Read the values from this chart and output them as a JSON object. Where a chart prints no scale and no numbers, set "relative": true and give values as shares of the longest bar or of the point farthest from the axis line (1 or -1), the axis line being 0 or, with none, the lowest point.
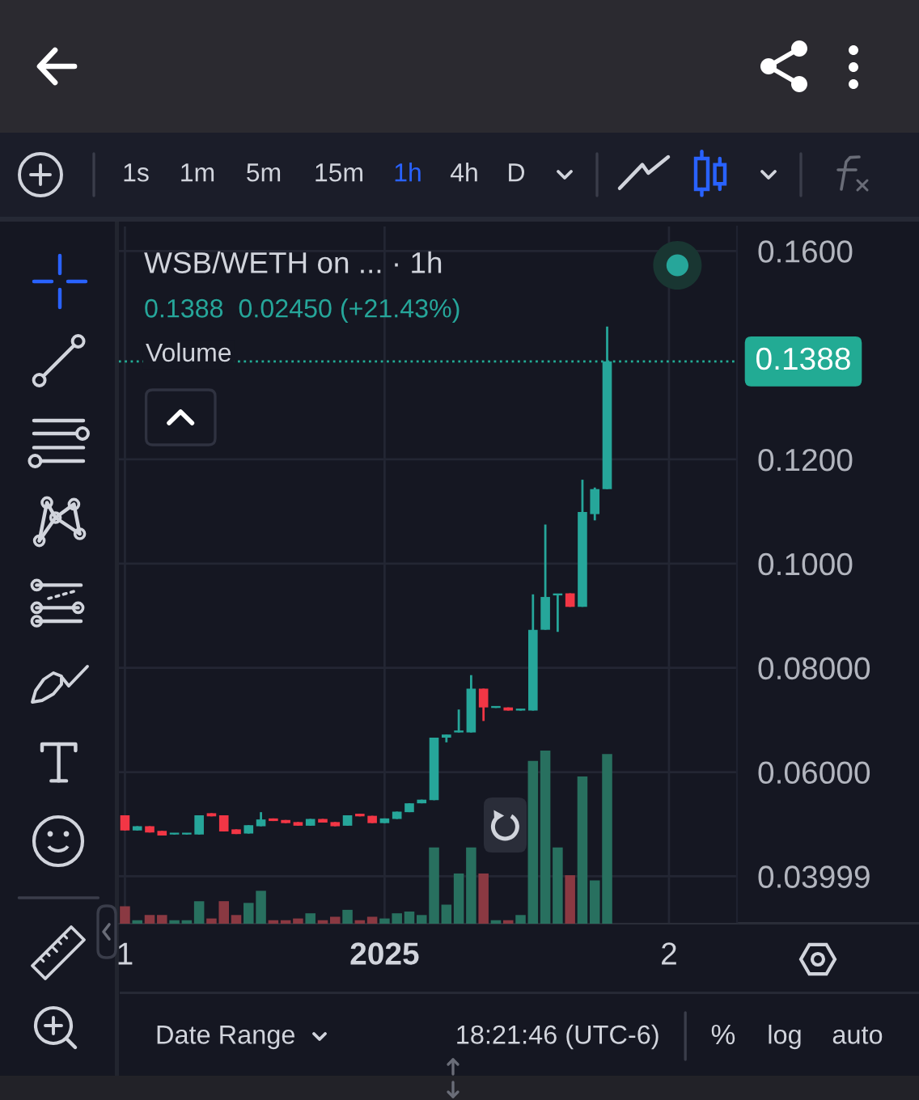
{
  "chart_data": [
    {
      "type": "candlestick",
      "title": "WSB/WETH on ... · 1h",
      "subtitle": "0.1388  0.02450 (+21.43%)",
      "categories": [
        "1",
        null,
        null,
        null,
        null,
        null,
        null,
        null,
        null,
        null,
        null,
        null,
        null,
        null,
        null,
        null,
        null,
        null,
        null,
        null,
        null,
        "2025",
        null,
        null,
        null,
        null,
        null,
        null,
        null,
        null,
        null,
        null,
        null,
        null,
        null,
        null,
        null,
        null,
        null,
        null,
        null,
        null,
        null,
        null,
        "2",
        null,
        null,
        null,
        null,
        null
      ],
      "ohlc": [
        [
          0.0517,
          0.0517,
          0.0488,
          0.0488
        ],
        [
          0.0488,
          0.0496,
          0.0488,
          0.0496
        ],
        [
          0.0496,
          0.0496,
          0.0484,
          0.0484
        ],
        [
          0.0487,
          0.0487,
          0.0478,
          0.0478
        ],
        [
          0.048,
          0.0482,
          0.048,
          0.0482
        ],
        [
          0.048,
          0.0482,
          0.048,
          0.0482
        ],
        [
          0.048,
          0.0517,
          0.048,
          0.0517
        ],
        [
          0.0521,
          0.0521,
          0.0515,
          0.0515
        ],
        [
          0.0517,
          0.0517,
          0.0486,
          0.0486
        ],
        [
          0.049,
          0.049,
          0.0481,
          0.0481
        ],
        [
          0.0482,
          0.0498,
          0.0482,
          0.0498
        ],
        [
          0.0496,
          0.0523,
          0.0496,
          0.0509
        ],
        [
          0.0511,
          0.0511,
          0.0506,
          0.0506
        ],
        [
          0.0508,
          0.0508,
          0.0502,
          0.0502
        ],
        [
          0.0504,
          0.0504,
          0.0497,
          0.0497
        ],
        [
          0.0497,
          0.051,
          0.0497,
          0.051
        ],
        [
          0.051,
          0.051,
          0.0503,
          0.0503
        ],
        [
          0.0504,
          0.0504,
          0.0496,
          0.0496
        ],
        [
          0.0497,
          0.0517,
          0.0497,
          0.0517
        ],
        [
          0.052,
          0.052,
          0.0515,
          0.0515
        ],
        [
          0.0516,
          0.0516,
          0.0502,
          0.0502
        ],
        [
          0.0502,
          0.0511,
          0.0502,
          0.0511
        ],
        [
          0.051,
          0.0524,
          0.051,
          0.0524
        ],
        [
          0.0523,
          0.054,
          0.0523,
          0.054
        ],
        [
          0.054,
          0.0547,
          0.054,
          0.0547
        ],
        [
          0.0546,
          0.0666,
          0.0546,
          0.0666
        ],
        [
          0.0666,
          0.0672,
          0.0657,
          0.0672
        ],
        [
          0.0676,
          0.072,
          0.0676,
          0.0678
        ],
        [
          0.0676,
          0.0786,
          0.0676,
          0.076
        ],
        [
          0.076,
          0.076,
          0.0698,
          0.0724
        ],
        [
          0.0723,
          0.0725,
          0.0723,
          0.0725
        ],
        [
          0.0724,
          0.0724,
          0.0718,
          0.0718
        ],
        [
          0.0718,
          0.0721,
          0.0718,
          0.0721
        ],
        [
          0.0718,
          0.0941,
          0.0718,
          0.0873
        ],
        [
          0.0873,
          0.1075,
          0.0873,
          0.0936
        ],
        [
          0.0939,
          0.0941,
          0.0869,
          0.0941
        ],
        [
          0.0943,
          0.0943,
          0.0917,
          0.0917
        ],
        [
          0.0917,
          0.1161,
          0.0917,
          0.1099
        ],
        [
          0.1095,
          0.1146,
          0.1083,
          0.1143
        ],
        [
          0.1143,
          0.1455,
          0.1143,
          0.1388
        ],
        null,
        null,
        null,
        null,
        null,
        null,
        null,
        null,
        null,
        null
      ],
      "colors": [
        "#f23645",
        "#26a69a",
        "#f23645",
        "#f23645",
        "#26a69a",
        "#26a69a",
        "#26a69a",
        "#f23645",
        "#f23645",
        "#f23645",
        "#26a69a",
        "#26a69a",
        "#f23645",
        "#f23645",
        "#f23645",
        "#26a69a",
        "#f23645",
        "#f23645",
        "#26a69a",
        "#f23645",
        "#f23645",
        "#26a69a",
        "#26a69a",
        "#26a69a",
        "#26a69a",
        "#26a69a",
        "#26a69a",
        "#26a69a",
        "#26a69a",
        "#f23645",
        "#26a69a",
        "#f23645",
        "#26a69a",
        "#26a69a",
        "#26a69a",
        "#26a69a",
        "#f23645",
        "#26a69a",
        "#26a69a",
        "#26a69a",
        null,
        null,
        null,
        null,
        null,
        null,
        null,
        null,
        null,
        null
      ],
      "ylim": [
        0.0309,
        0.1647
      ],
      "yticks": [
        {
          "value": 0.16,
          "label": "0.1600"
        },
        {
          "value": 0.12,
          "label": "0.1200"
        },
        {
          "value": 0.1,
          "label": "0.1000"
        },
        {
          "value": 0.08,
          "label": "0.08000"
        },
        {
          "value": 0.06,
          "label": "0.06000"
        },
        0.03999
      ],
      "grid": true,
      "ref_lines": [
        {
          "axis": "y",
          "value": 0.1388,
          "label": "0.1388",
          "color": "#22ab94",
          "line_style": "dotted"
        }
      ],
      "annotations": [
        "1s",
        "1m",
        "5m",
        "15m",
        "1h",
        "4h",
        "D",
        "Date Range",
        "18:21:46 (UTC-6)",
        "%",
        "log",
        "auto"
      ]
    },
    {
      "type": "bar",
      "title": "Volume",
      "relative": true,
      "tick_labels": false,
      "categories": [
        "1",
        null,
        null,
        null,
        null,
        null,
        null,
        null,
        null,
        null,
        null,
        null,
        null,
        null,
        null,
        null,
        null,
        null,
        null,
        null,
        null,
        "2025",
        null,
        null,
        null,
        null,
        null,
        null,
        null,
        null,
        null,
        null,
        null,
        null,
        null,
        null,
        null,
        null,
        null,
        null,
        null,
        null,
        null,
        null,
        "2",
        null,
        null,
        null,
        null,
        null
      ],
      "values": [
        0.1,
        0.02,
        0.05,
        0.05,
        0.02,
        0.02,
        0.13,
        0.03,
        0.13,
        0.05,
        0.12,
        0.19,
        0.02,
        0.02,
        0.03,
        0.06,
        0.02,
        0.04,
        0.08,
        0.02,
        0.04,
        0.03,
        0.06,
        0.07,
        0.05,
        0.44,
        0.11,
        0.29,
        0.44,
        0.29,
        0.02,
        0.02,
        0.05,
        0.94,
        1,
        0.44,
        0.28,
        0.85,
        0.25,
        0.98,
        null,
        null,
        null,
        null,
        null,
        null,
        null,
        null,
        null,
        null
      ],
      "colors": [
        "#8a3942",
        "#28705f",
        "#8a3942",
        "#8a3942",
        "#28705f",
        "#28705f",
        "#28705f",
        "#8a3942",
        "#8a3942",
        "#8a3942",
        "#28705f",
        "#28705f",
        "#8a3942",
        "#8a3942",
        "#8a3942",
        "#28705f",
        "#8a3942",
        "#8a3942",
        "#28705f",
        "#8a3942",
        "#8a3942",
        "#28705f",
        "#28705f",
        "#28705f",
        "#28705f",
        "#28705f",
        "#28705f",
        "#28705f",
        "#28705f",
        "#8a3942",
        "#28705f",
        "#8a3942",
        "#28705f",
        "#28705f",
        "#28705f",
        "#28705f",
        "#8a3942",
        "#28705f",
        "#28705f",
        "#28705f",
        null,
        null,
        null,
        null,
        null,
        null,
        null,
        null,
        null,
        null
      ]
    }
  ]
}
